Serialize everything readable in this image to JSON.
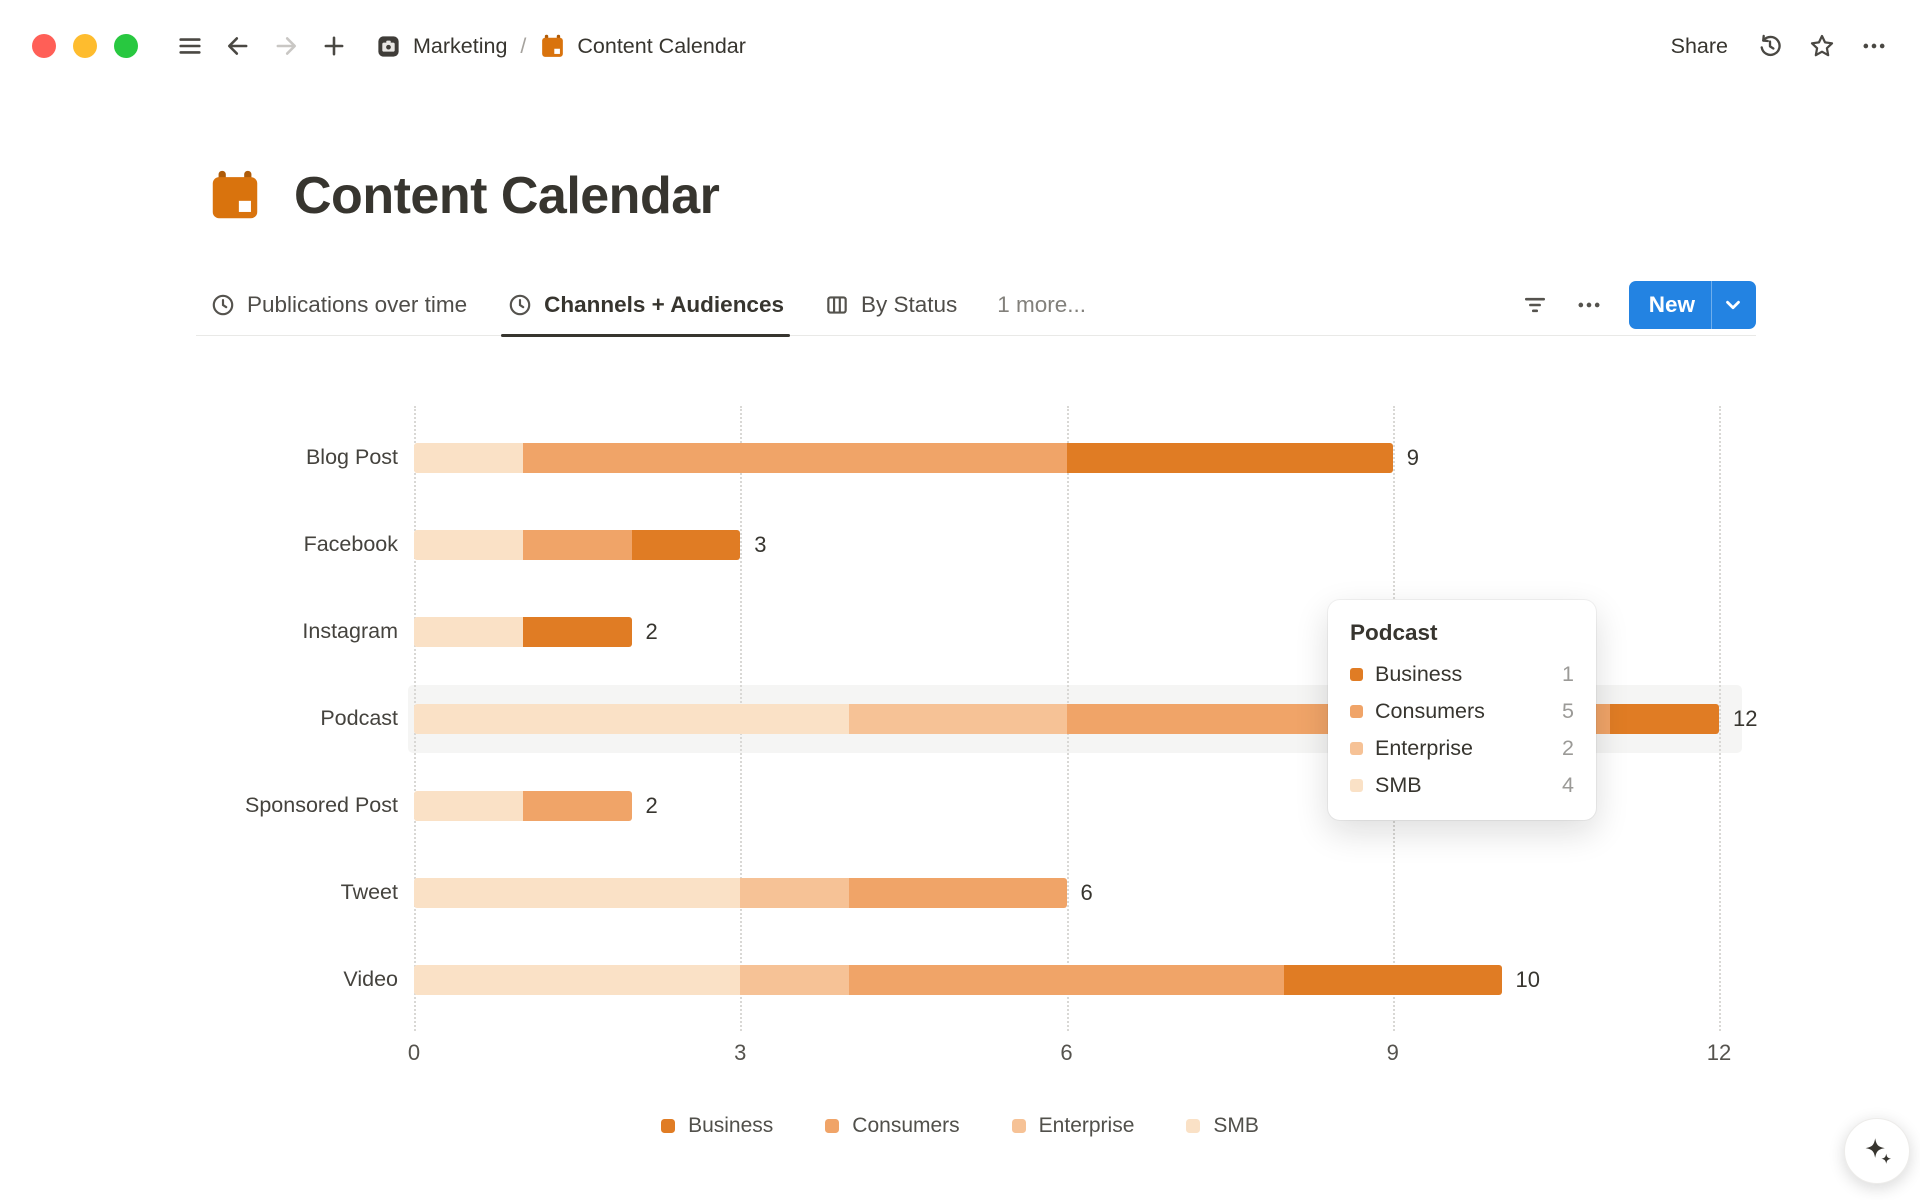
{
  "topbar": {
    "breadcrumb": {
      "workspace": "Marketing",
      "separator": "/",
      "page": "Content Calendar"
    },
    "share_label": "Share"
  },
  "page": {
    "title": "Content Calendar",
    "new_button_label": "New",
    "tabs": [
      {
        "label": "Publications over time",
        "icon": "clock",
        "active": false
      },
      {
        "label": "Channels + Audiences",
        "icon": "clock",
        "active": true
      },
      {
        "label": "By Status",
        "icon": "board",
        "active": false
      },
      {
        "label": "1 more...",
        "icon": "",
        "active": false
      }
    ]
  },
  "colors": {
    "accent_blue": "#2383E2",
    "brand_orange": "#D9730D"
  },
  "chart_data": {
    "type": "bar",
    "orientation": "horizontal",
    "stacked": true,
    "title": "",
    "categories": [
      "Blog Post",
      "Facebook",
      "Instagram",
      "Podcast",
      "Sponsored Post",
      "Tweet",
      "Video"
    ],
    "series": [
      {
        "name": "SMB",
        "color": "#FAE1C6",
        "values": [
          1,
          1,
          1,
          4,
          1,
          3,
          3
        ]
      },
      {
        "name": "Enterprise",
        "color": "#F6C296",
        "values": [
          0,
          0,
          0,
          2,
          0,
          1,
          1
        ]
      },
      {
        "name": "Consumers",
        "color": "#F0A468",
        "values": [
          5,
          1,
          0,
          5,
          1,
          2,
          4
        ]
      },
      {
        "name": "Business",
        "color": "#E07C24",
        "values": [
          3,
          1,
          1,
          1,
          0,
          0,
          2
        ]
      }
    ],
    "totals": [
      9,
      3,
      2,
      12,
      2,
      6,
      10
    ],
    "x_ticks": [
      0,
      3,
      6,
      9,
      12
    ],
    "xlim": [
      0,
      12
    ],
    "grid": "dotted-vertical",
    "legend": [
      "Business",
      "Consumers",
      "Enterprise",
      "SMB"
    ],
    "legend_position": "bottom",
    "highlighted_category": "Podcast"
  },
  "tooltip": {
    "title": "Podcast",
    "rows": [
      {
        "label": "Business",
        "value": "1"
      },
      {
        "label": "Consumers",
        "value": "5"
      },
      {
        "label": "Enterprise",
        "value": "2"
      },
      {
        "label": "SMB",
        "value": "4"
      }
    ]
  }
}
